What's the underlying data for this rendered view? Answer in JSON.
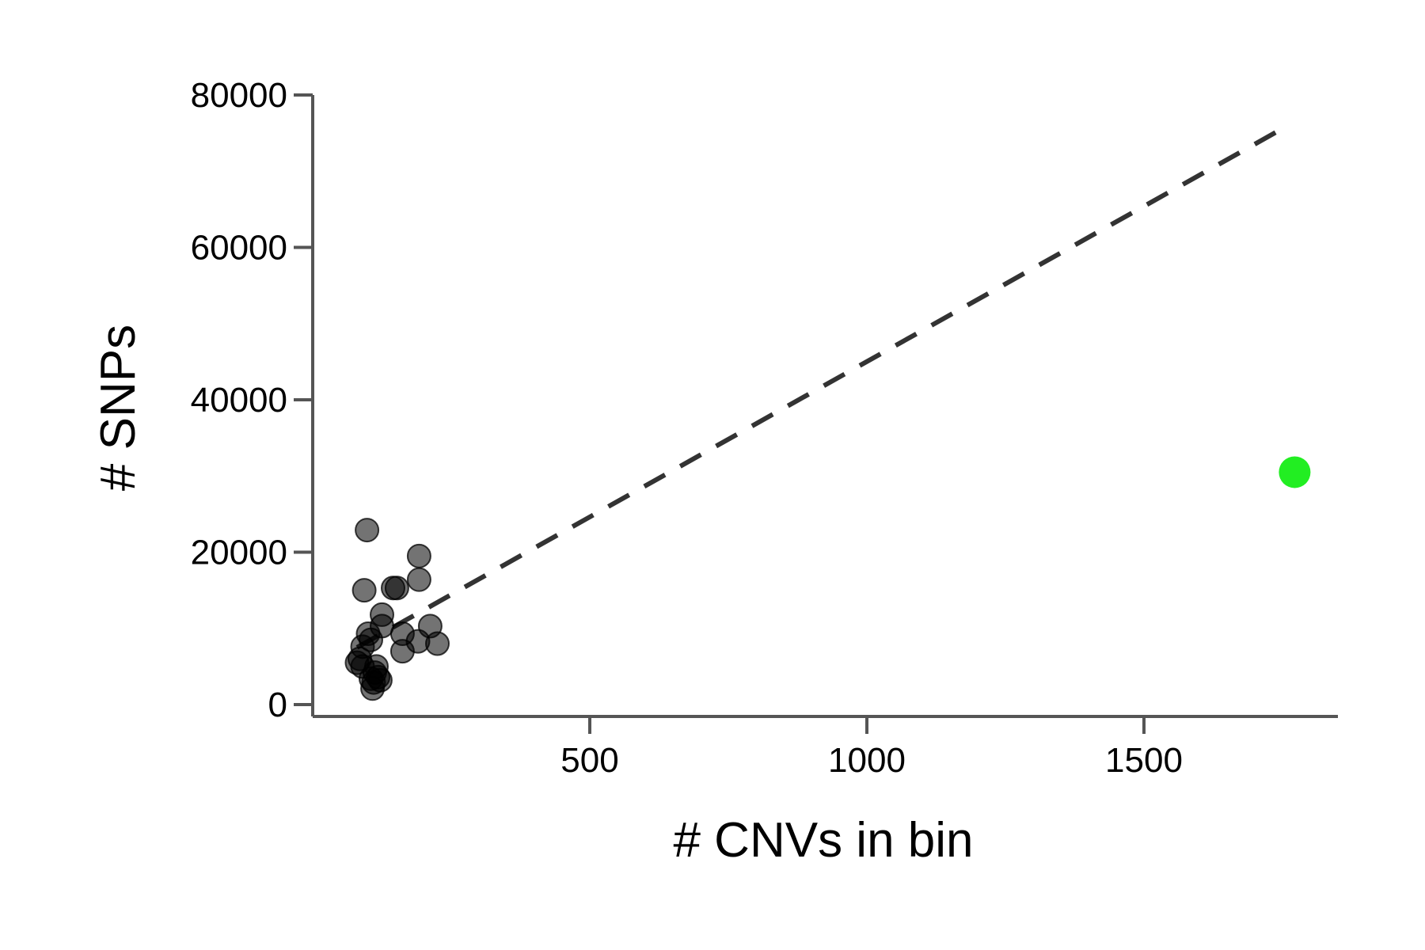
{
  "chart_data": {
    "type": "scatter",
    "title": "",
    "xlabel": "# CNVs in bin",
    "ylabel": "# SNPs",
    "xlim": [
      0,
      1850
    ],
    "ylim": [
      0,
      80000
    ],
    "x_ticks": [
      500,
      1000,
      1500
    ],
    "x_tick_labels": [
      "500",
      "1000",
      "1500"
    ],
    "y_ticks": [
      0,
      20000,
      40000,
      60000,
      80000
    ],
    "y_tick_labels": [
      "0",
      "20000",
      "40000",
      "60000",
      "80000"
    ],
    "grid": false,
    "legend": "none",
    "colors": {
      "points": "#000000",
      "point_opacity": 0.55,
      "highlight": "#22ee22",
      "trend": "#333333",
      "axis": "#555555"
    },
    "series": [
      {
        "points": [
          {
            "x": 98,
            "y": 22900
          },
          {
            "x": 93,
            "y": 15000
          },
          {
            "x": 192,
            "y": 19500
          },
          {
            "x": 192,
            "y": 16400
          },
          {
            "x": 145,
            "y": 15300
          },
          {
            "x": 152,
            "y": 15300
          },
          {
            "x": 125,
            "y": 11800
          },
          {
            "x": 125,
            "y": 10300
          },
          {
            "x": 212,
            "y": 10300
          },
          {
            "x": 100,
            "y": 9300
          },
          {
            "x": 162,
            "y": 9300
          },
          {
            "x": 105,
            "y": 8500
          },
          {
            "x": 190,
            "y": 8300
          },
          {
            "x": 225,
            "y": 8000
          },
          {
            "x": 90,
            "y": 7600
          },
          {
            "x": 162,
            "y": 7000
          },
          {
            "x": 85,
            "y": 6000
          },
          {
            "x": 80,
            "y": 5500
          },
          {
            "x": 90,
            "y": 5000
          },
          {
            "x": 115,
            "y": 5000
          },
          {
            "x": 112,
            "y": 4200
          },
          {
            "x": 118,
            "y": 3600
          },
          {
            "x": 105,
            "y": 3400
          },
          {
            "x": 122,
            "y": 3200
          },
          {
            "x": 110,
            "y": 2900
          },
          {
            "x": 108,
            "y": 2100
          }
        ]
      },
      {
        "highlight": true,
        "points": [
          {
            "x": 1772,
            "y": 30500
          }
        ]
      }
    ],
    "trend_line": {
      "style": "dashed",
      "x": [
        80,
        1760
      ],
      "y": [
        7500,
        76000
      ]
    }
  }
}
